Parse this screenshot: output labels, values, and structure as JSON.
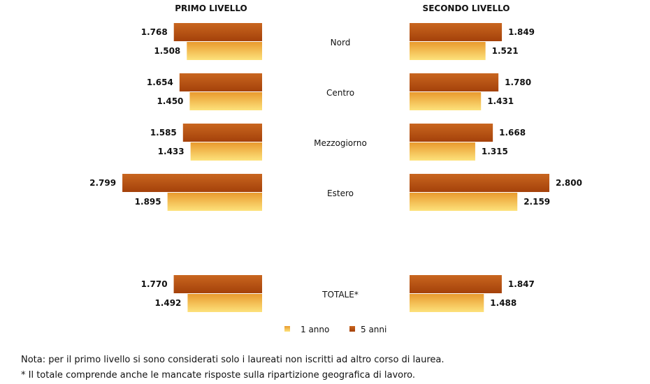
{
  "chart_data": {
    "type": "bar",
    "orientation": "horizontal-butterfly",
    "panels": [
      {
        "title": "PRIMO LIVELLO"
      },
      {
        "title": "SECONDO LIVELLO"
      }
    ],
    "categories": [
      "Nord",
      "Centro",
      "Mezzogiorno",
      "Estero",
      "TOTALE*"
    ],
    "series": [
      {
        "name": "5 anni",
        "color": "#b84e10",
        "primo": [
          "1.768",
          "1.654",
          "1.585",
          "2.799",
          "1.770"
        ],
        "secondo": [
          "1.849",
          "1.780",
          "1.668",
          "2.800",
          "1.847"
        ],
        "primo_values": [
          1768,
          1654,
          1585,
          2799,
          1770
        ],
        "secondo_values": [
          1849,
          1780,
          1668,
          2800,
          1847
        ]
      },
      {
        "name": "1 anno",
        "color": "#f2b03c",
        "primo": [
          "1.508",
          "1.450",
          "1.433",
          "1.895",
          "1.492"
        ],
        "secondo": [
          "1.521",
          "1.431",
          "1.315",
          "2.159",
          "1.488"
        ],
        "primo_values": [
          1508,
          1450,
          1433,
          1895,
          1492
        ],
        "secondo_values": [
          1521,
          1431,
          1315,
          2159,
          1488
        ]
      }
    ],
    "legend": {
      "position": "bottom",
      "items": [
        "1 anno",
        "5 anni"
      ]
    }
  },
  "notes": [
    "Nota: per il primo livello si sono considerati solo i laureati non iscritti ad altro corso di laurea.",
    "* Il totale comprende anche le mancate risposte sulla ripartizione geografica di lavoro."
  ]
}
